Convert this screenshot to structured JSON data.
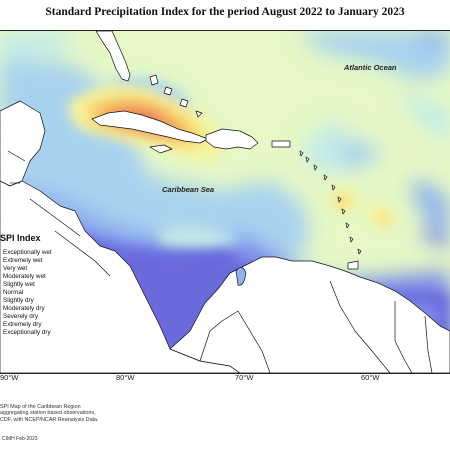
{
  "title": "Standard Precipitation Index for the period August 2022 to January 2023",
  "labels": {
    "atlantic": "Atlantic Ocean",
    "caribbean": "Caribbean Sea"
  },
  "legend": {
    "title": "SPI Index",
    "items": [
      {
        "label": "Exceptionally wet",
        "color": "#6b6bdd"
      },
      {
        "label": "Extremely wet",
        "color": "#7d8be8"
      },
      {
        "label": "Very wet",
        "color": "#8fb1ee"
      },
      {
        "label": "Moderately wet",
        "color": "#a7d2ef"
      },
      {
        "label": "Slightly wet",
        "color": "#c4ebe8"
      },
      {
        "label": "Normal",
        "color": "#e5f8c6"
      },
      {
        "label": "Slightly dry",
        "color": "#f7f59c"
      },
      {
        "label": "Moderately dry",
        "color": "#f8d56e"
      },
      {
        "label": "Severely dry",
        "color": "#f3a65a"
      },
      {
        "label": "Extremely dry",
        "color": "#eb7060"
      },
      {
        "label": "Exceptionally dry",
        "color": "#d94a55"
      }
    ]
  },
  "axis": {
    "ticks": [
      "90°W",
      "80°W",
      "70°W",
      "60°W"
    ]
  },
  "footer": {
    "lines": [
      "SPI Map of the Caribbean Region",
      "aggregating station based observations,",
      "CDF, with NCEP/NCAR Reanalysis Data."
    ],
    "credit": "CIMH Feb-2023"
  }
}
